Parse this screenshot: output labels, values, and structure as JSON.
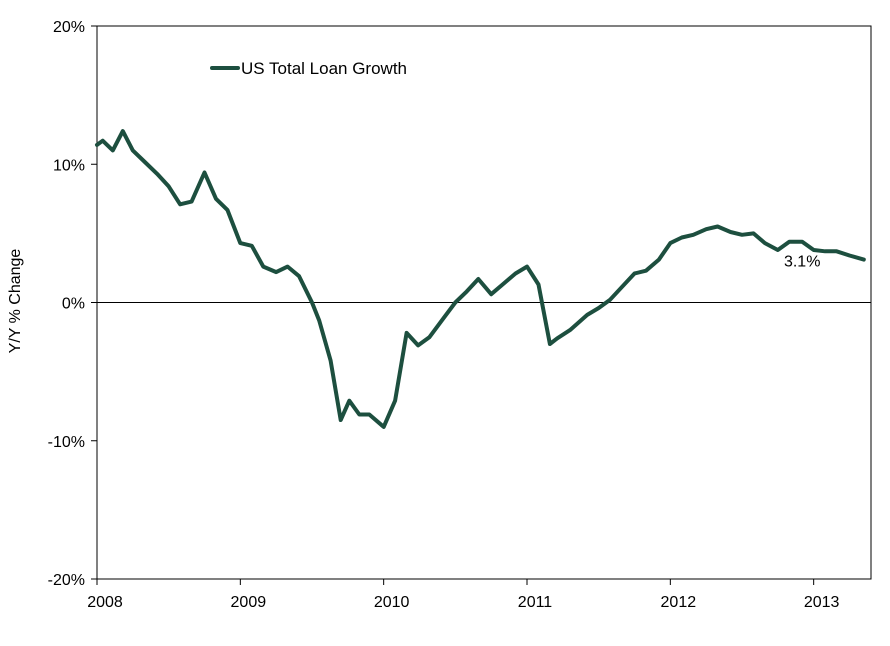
{
  "chart_data": {
    "type": "line",
    "title": "",
    "xlabel": "",
    "ylabel": "Y/Y % Change",
    "xlim": [
      2008.0,
      2013.4
    ],
    "ylim": [
      -20,
      20
    ],
    "x_ticks": [
      {
        "value": 2008,
        "label": "2008"
      },
      {
        "value": 2009,
        "label": "2009"
      },
      {
        "value": 2010,
        "label": "2010"
      },
      {
        "value": 2011,
        "label": "2011"
      },
      {
        "value": 2012,
        "label": "2012"
      },
      {
        "value": 2013,
        "label": "2013"
      }
    ],
    "y_ticks": [
      {
        "value": 20,
        "label": "20%"
      },
      {
        "value": 10,
        "label": "10%"
      },
      {
        "value": 0,
        "label": "0%"
      },
      {
        "value": -10,
        "label": "-10%"
      },
      {
        "value": -20,
        "label": "-20%"
      }
    ],
    "grid": false,
    "zero_line": true,
    "legend": {
      "position": "top-left"
    },
    "series": [
      {
        "name": "US Total Loan Growth",
        "color": "#1d4f3f",
        "x": [
          2008.0,
          2008.04,
          2008.11,
          2008.18,
          2008.25,
          2008.33,
          2008.42,
          2008.5,
          2008.58,
          2008.66,
          2008.75,
          2008.83,
          2008.91,
          2009.0,
          2009.08,
          2009.16,
          2009.25,
          2009.33,
          2009.41,
          2009.5,
          2009.55,
          2009.63,
          2009.7,
          2009.76,
          2009.83,
          2009.9,
          2010.0,
          2010.08,
          2010.16,
          2010.24,
          2010.32,
          2010.42,
          2010.5,
          2010.58,
          2010.66,
          2010.75,
          2010.83,
          2010.92,
          2011.0,
          2011.08,
          2011.16,
          2011.21,
          2011.3,
          2011.42,
          2011.5,
          2011.58,
          2011.66,
          2011.75,
          2011.83,
          2011.92,
          2012.0,
          2012.08,
          2012.16,
          2012.25,
          2012.33,
          2012.42,
          2012.5,
          2012.58,
          2012.66,
          2012.75,
          2012.83,
          2012.92,
          2013.0,
          2013.08,
          2013.16,
          2013.25,
          2013.35
        ],
        "values": [
          11.4,
          11.7,
          11.0,
          12.4,
          11.0,
          10.2,
          9.3,
          8.4,
          7.1,
          7.3,
          9.4,
          7.5,
          6.7,
          4.3,
          4.1,
          2.6,
          2.2,
          2.6,
          1.9,
          0.0,
          -1.3,
          -4.2,
          -8.5,
          -7.1,
          -8.1,
          -8.1,
          -9.0,
          -7.1,
          -2.2,
          -3.1,
          -2.5,
          -1.1,
          0.0,
          0.8,
          1.7,
          0.6,
          1.3,
          2.1,
          2.6,
          1.3,
          -3.0,
          -2.6,
          -2.0,
          -0.9,
          -0.4,
          0.2,
          1.1,
          2.1,
          2.3,
          3.1,
          4.3,
          4.7,
          4.9,
          5.3,
          5.5,
          5.1,
          4.9,
          5.0,
          4.3,
          3.8,
          4.4,
          4.4,
          3.8,
          3.7,
          3.7,
          3.4,
          3.1
        ]
      }
    ],
    "annotations": [
      {
        "text": "3.1%",
        "x": 2012.92,
        "y": 2.6
      }
    ]
  }
}
